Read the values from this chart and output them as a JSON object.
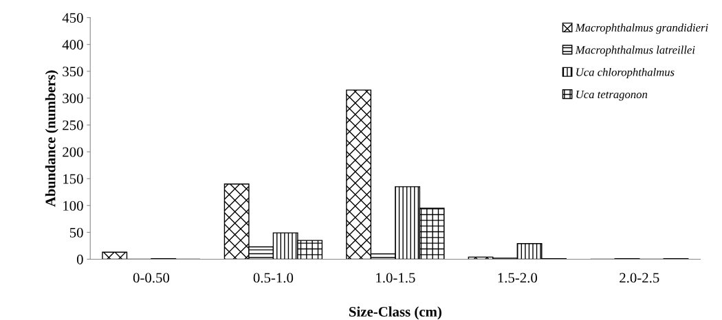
{
  "chart_data": {
    "type": "bar",
    "xlabel": "Size-Class (cm)",
    "ylabel": "Abundance (numbers)",
    "categories": [
      "0-0.50",
      "0.5-1.0",
      "1.0-1.5",
      "1.5-2.0",
      "2.0-2.5"
    ],
    "series": [
      {
        "name": "Macrophthalmus grandidieri",
        "color": "#000000",
        "values": [
          13,
          140,
          315,
          4,
          0
        ]
      },
      {
        "name": "Macrophthalmus latreillei",
        "color": "#000000",
        "values": [
          0,
          23,
          10,
          2,
          1
        ]
      },
      {
        "name": "Uca chlorophthalmus",
        "color": "#000000",
        "values": [
          1,
          49,
          135,
          29,
          0
        ]
      },
      {
        "name": "Uca tetragonon",
        "color": "#000000",
        "values": [
          0,
          35,
          95,
          1,
          1
        ]
      }
    ],
    "ylim": [
      0,
      450
    ],
    "yticks": [
      0,
      50,
      100,
      150,
      200,
      250,
      300,
      350,
      400,
      450
    ],
    "grid": false,
    "legend": "top right"
  }
}
